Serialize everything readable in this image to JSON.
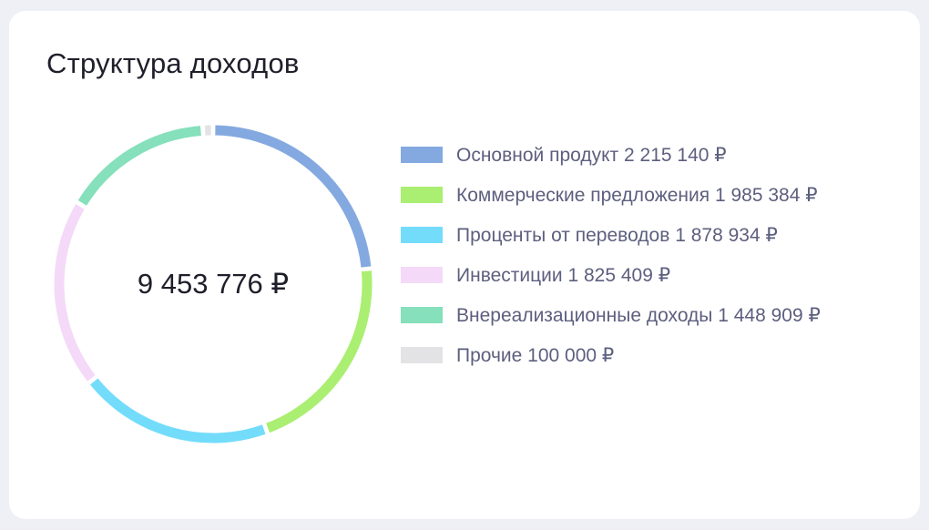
{
  "card": {
    "title": "Структура доходов",
    "total_label": "9 453 776 ₽"
  },
  "chart_data": {
    "type": "pie",
    "variant": "donut",
    "title": "Структура доходов",
    "total": 9453776,
    "total_label": "9 453 776 ₽",
    "series": [
      {
        "name": "Основной продукт",
        "value": 2215140,
        "value_label": "2 215 140 ₽",
        "color": "#84a9e0"
      },
      {
        "name": "Коммерческие предложения",
        "value": 1985384,
        "value_label": "1 985 384 ₽",
        "color": "#aaee72"
      },
      {
        "name": "Проценты от переводов",
        "value": 1878934,
        "value_label": "1 878 934 ₽",
        "color": "#74dcfb"
      },
      {
        "name": "Инвестиции",
        "value": 1825409,
        "value_label": "1 825 409 ₽",
        "color": "#f5d9f8"
      },
      {
        "name": "Внереализационные доходы",
        "value": 1448909,
        "value_label": "1 448 909 ₽",
        "color": "#85e0bb"
      },
      {
        "name": "Прочие",
        "value": 100000,
        "value_label": "100 000 ₽",
        "color": "#e3e3e6"
      }
    ],
    "legend_position": "right"
  }
}
